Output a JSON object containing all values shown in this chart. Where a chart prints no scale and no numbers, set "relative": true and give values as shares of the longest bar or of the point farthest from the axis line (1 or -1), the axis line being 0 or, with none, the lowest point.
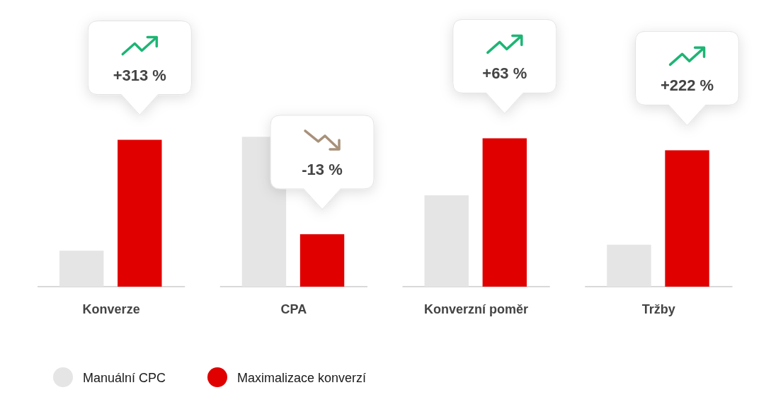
{
  "chart_data": {
    "type": "bar",
    "relative": true,
    "categories": [
      "Konverze",
      "CPA",
      "Konverzní poměr",
      "Tržby"
    ],
    "series": [
      {
        "name": "Manuální CPC",
        "color": "#e5e5e5",
        "values": [
          0.24,
          1,
          0.61,
          0.28
        ]
      },
      {
        "name": "Maximalizace konverzí",
        "color": "#e00000",
        "values": [
          0.98,
          0.35,
          0.99,
          0.91
        ]
      }
    ],
    "annotations": [
      "+313 %",
      "-13 %",
      "+63 %",
      "+222 %"
    ],
    "grid": true,
    "legend": "bottom left"
  }
}
